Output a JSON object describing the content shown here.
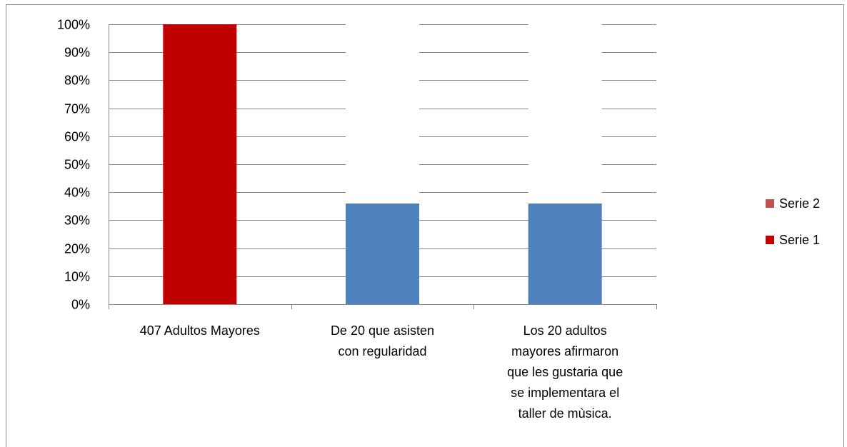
{
  "chart_data": {
    "type": "bar",
    "stacked": true,
    "percent": true,
    "categories": [
      "407 Adultos Mayores",
      "De 20 que asisten con regularidad",
      "Los 20 adultos mayores afirmaron que les gustaria que se implementara el taller de mùsica."
    ],
    "category_lines": [
      [
        "407 Adultos Mayores"
      ],
      [
        "De 20 que asisten",
        "con regularidad"
      ],
      [
        "Los 20 adultos",
        "mayores afirmaron",
        "que les gustaria que",
        "se implementara el",
        "taller de mùsica."
      ]
    ],
    "series": [
      {
        "name": "Serie 1",
        "color": "#C00000",
        "values": [
          100,
          0,
          0
        ]
      },
      {
        "name": "Serie 2",
        "color": "#C0504D",
        "values": [
          0,
          0,
          0
        ]
      },
      {
        "name": "",
        "color": "#4F81BD",
        "values": [
          0,
          36,
          36
        ]
      },
      {
        "name": "",
        "color": "#FFFFFF",
        "values": [
          0,
          64,
          64
        ]
      }
    ],
    "legend": [
      {
        "name": "Serie 2",
        "color": "#C0504D"
      },
      {
        "name": "Serie 1",
        "color": "#C00000"
      }
    ],
    "legend_position": "right",
    "yticks": [
      "0%",
      "10%",
      "20%",
      "30%",
      "40%",
      "50%",
      "60%",
      "70%",
      "80%",
      "90%",
      "100%"
    ],
    "ylim": [
      0,
      100
    ],
    "grid": true
  }
}
